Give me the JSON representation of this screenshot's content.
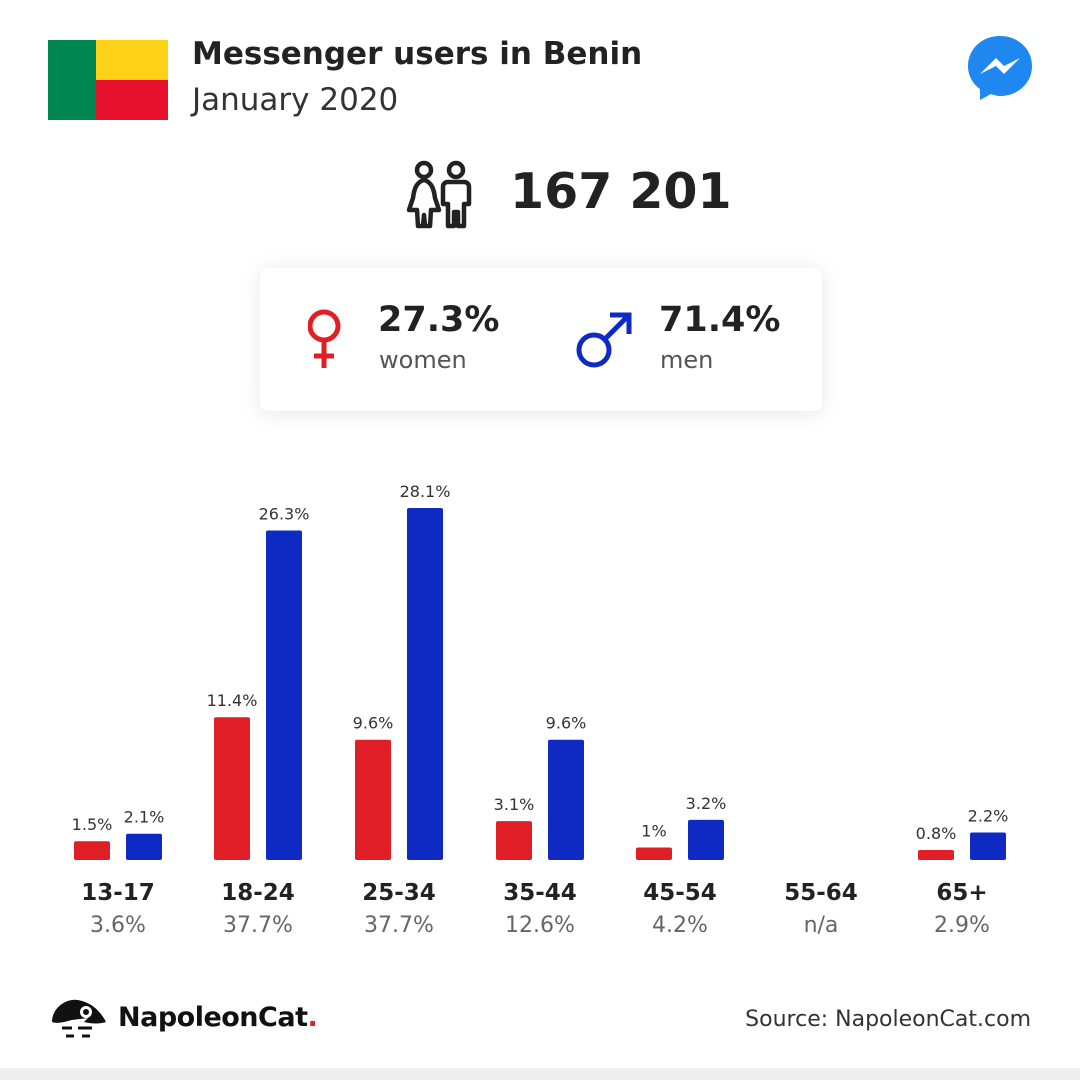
{
  "header": {
    "title": "Messenger users in Benin",
    "subtitle": "January 2020",
    "flag_colors": {
      "green": "#008751",
      "yellow": "#fcd116",
      "red": "#e8112d"
    },
    "app_icon": "messenger-icon"
  },
  "total": {
    "icon": "people-icon",
    "value": "167 201"
  },
  "gender": {
    "women": {
      "icon": "female-symbol-icon",
      "pct": "27.3%",
      "label": "women",
      "color": "#e01e25"
    },
    "men": {
      "icon": "male-symbol-icon",
      "pct": "71.4%",
      "label": "men",
      "color": "#0f2ac3"
    }
  },
  "chart_data": {
    "type": "bar",
    "categories": [
      "13-17",
      "18-24",
      "25-34",
      "35-44",
      "45-54",
      "55-64",
      "65+"
    ],
    "group_totals": [
      "3.6%",
      "37.7%",
      "37.7%",
      "12.6%",
      "4.2%",
      "n/a",
      "2.9%"
    ],
    "series": [
      {
        "color": "#e01e25",
        "values": [
          1.5,
          11.4,
          9.6,
          3.1,
          1.0,
          null,
          0.8
        ],
        "labels": [
          "1.5%",
          "11.4%",
          "9.6%",
          "3.1%",
          "1%",
          "",
          "0.8%"
        ]
      },
      {
        "color": "#0f2ac3",
        "values": [
          2.1,
          26.3,
          28.1,
          9.6,
          3.2,
          null,
          2.2
        ],
        "labels": [
          "2.1%",
          "26.3%",
          "28.1%",
          "9.6%",
          "3.2%",
          "",
          "2.2%"
        ]
      }
    ],
    "ylim": [
      0,
      28.1
    ],
    "grid": false,
    "legend": "none"
  },
  "footer": {
    "brand": "NapoleonCat",
    "brand_dot": ".",
    "logo_icon": "napoleoncat-logo-icon",
    "source": "Source: NapoleonCat.com"
  }
}
